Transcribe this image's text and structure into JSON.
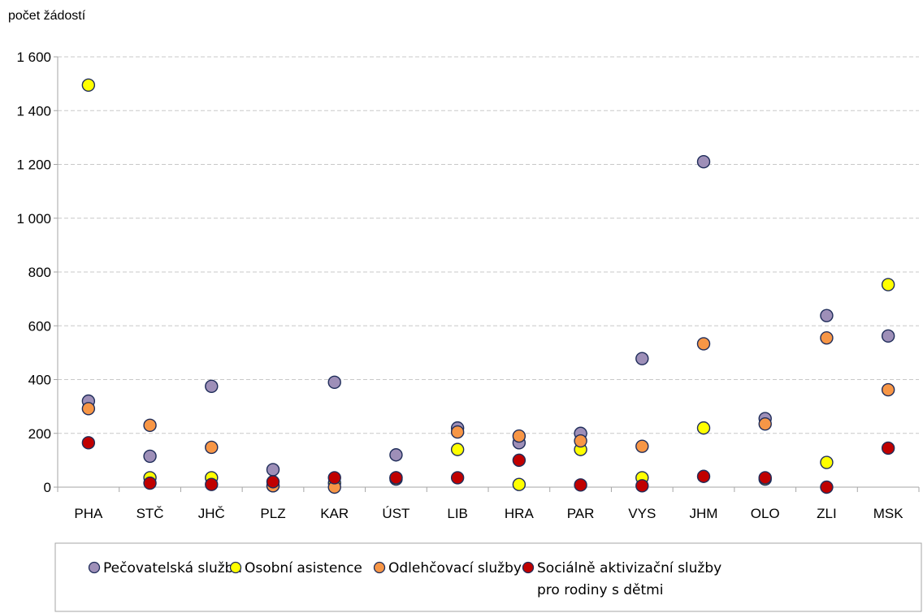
{
  "chart_data": {
    "type": "scatter",
    "ylabel": "počet žádostí",
    "xlabel": "",
    "ylim": [
      0,
      1600
    ],
    "yticks": [
      0,
      200,
      400,
      600,
      800,
      1000,
      1200,
      1400,
      1600
    ],
    "ytick_labels": [
      "0",
      "200",
      "400",
      "600",
      "800",
      "1 000",
      "1 200",
      "1 400",
      "1 600"
    ],
    "grid": "horizontal dashed",
    "legend_position": "bottom",
    "categories": [
      "PHA",
      "STČ",
      "JHČ",
      "PLZ",
      "KAR",
      "ÚST",
      "LIB",
      "HRA",
      "PAR",
      "VYS",
      "JHM",
      "OLO",
      "ZLI",
      "MSK"
    ],
    "series": [
      {
        "name": "Pečovatelská služba",
        "color": "#9e8fb8",
        "values": [
          320,
          115,
          375,
          65,
          390,
          120,
          220,
          165,
          200,
          478,
          1210,
          255,
          638,
          562
        ]
      },
      {
        "name": "Osobní asistence",
        "color": "#ffff00",
        "values": [
          1495,
          35,
          35,
          5,
          15,
          30,
          140,
          10,
          140,
          35,
          220,
          30,
          92,
          753
        ]
      },
      {
        "name": "Odlehčovací služby",
        "color": "#f79646",
        "values": [
          292,
          230,
          148,
          5,
          0,
          35,
          205,
          190,
          172,
          152,
          533,
          235,
          555,
          362
        ]
      },
      {
        "name": "Sociálně aktivizační služby pro rodiny s dětmi",
        "color": "#c00000",
        "values": [
          165,
          15,
          10,
          20,
          35,
          35,
          35,
          100,
          8,
          5,
          40,
          35,
          0,
          145
        ]
      }
    ]
  },
  "legend": {
    "items": [
      {
        "lines": [
          "Pečovatelská služba"
        ],
        "color": "#9e8fb8"
      },
      {
        "lines": [
          "Osobní asistence"
        ],
        "color": "#ffff00"
      },
      {
        "lines": [
          "Odlehčovací služby"
        ],
        "color": "#f79646"
      },
      {
        "lines": [
          "Sociálně aktivizační služby",
          "pro rodiny s dětmi"
        ],
        "color": "#c00000"
      }
    ]
  }
}
